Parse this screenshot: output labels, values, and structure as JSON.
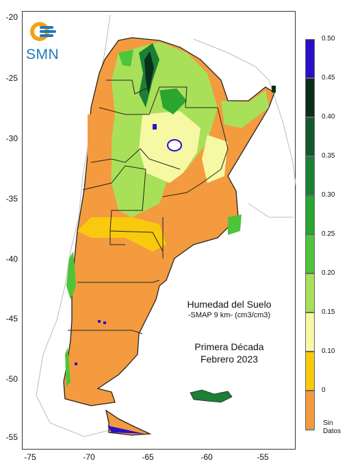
{
  "header": {
    "logo_text": "SMN"
  },
  "title": {
    "line1": "Humedad del Suelo",
    "line2": "-SMAP 9 km- (cm3/cm3)",
    "line3": "Primera Década",
    "line4": "Febrero 2023"
  },
  "axes": {
    "y_ticks": [
      "-20",
      "-25",
      "-30",
      "-35",
      "-40",
      "-45",
      "-50",
      "-55"
    ],
    "x_ticks": [
      "-75",
      "-70",
      "-65",
      "-60",
      "-55"
    ]
  },
  "legend": {
    "ticks": [
      "0.50",
      "0.45",
      "0.40",
      "0.35",
      "0.30",
      "0.25",
      "0.20",
      "0.15",
      "0.10",
      "0"
    ],
    "no_data_line1": "Sin",
    "no_data_line2": "Datos",
    "colors": [
      "#2a0fc9",
      "#082f1a",
      "#13592c",
      "#1c7f36",
      "#2aa52f",
      "#4ec43a",
      "#a8e05a",
      "#f6f8a4",
      "#f9c90e",
      "#f39b3e",
      "#ffffff"
    ]
  }
}
